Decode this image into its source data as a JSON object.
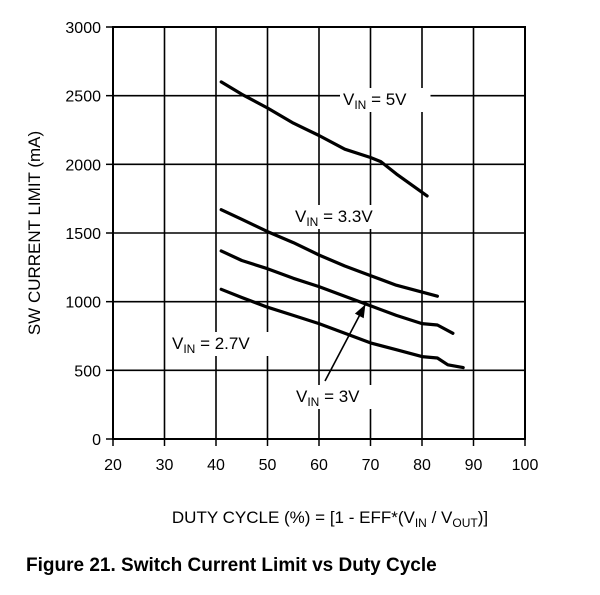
{
  "chart_data": {
    "type": "line",
    "title": "",
    "xlabel": {
      "prefix": "DUTY CYCLE (%) = [1 - EFF*(V",
      "sub_in": "IN",
      "middle": " / V",
      "sub_out": "OUT",
      "suffix": ")]"
    },
    "ylabel": "SW CURRENT LIMIT (mA)",
    "xlim": [
      20,
      100
    ],
    "ylim": [
      0,
      3000
    ],
    "xticks": [
      20,
      30,
      40,
      50,
      60,
      70,
      80,
      90,
      100
    ],
    "yticks": [
      0,
      500,
      1000,
      1500,
      2000,
      2500,
      3000
    ],
    "grid": true,
    "series": [
      {
        "name": "VIN = 5V",
        "x": [
          41,
          45,
          50,
          55,
          60,
          65,
          70,
          72,
          75,
          78,
          81
        ],
        "y": [
          2600,
          2510,
          2410,
          2300,
          2210,
          2110,
          2050,
          2020,
          1930,
          1850,
          1770
        ]
      },
      {
        "name": "VIN = 3.3V",
        "x": [
          41,
          45,
          50,
          55,
          60,
          65,
          70,
          75,
          80,
          83
        ],
        "y": [
          1670,
          1600,
          1510,
          1430,
          1340,
          1260,
          1190,
          1120,
          1070,
          1040
        ]
      },
      {
        "name": "VIN = 3V",
        "x": [
          41,
          45,
          50,
          55,
          60,
          65,
          70,
          75,
          80,
          83,
          86
        ],
        "y": [
          1370,
          1300,
          1240,
          1170,
          1110,
          1040,
          970,
          900,
          840,
          830,
          770
        ]
      },
      {
        "name": "VIN = 2.7V",
        "x": [
          41,
          45,
          50,
          55,
          60,
          65,
          70,
          75,
          80,
          83,
          85,
          88
        ],
        "y": [
          1090,
          1030,
          960,
          900,
          840,
          770,
          700,
          650,
          600,
          590,
          540,
          520
        ]
      }
    ],
    "annotations": [
      {
        "base": "V",
        "sub": "IN",
        "text": " = 5V"
      },
      {
        "base": "V",
        "sub": "IN",
        "text": " = 3.3V"
      },
      {
        "base": "V",
        "sub": "IN",
        "text": " = 2.7V"
      },
      {
        "base": "V",
        "sub": "IN",
        "text": " = 3V"
      }
    ],
    "arrow_target": {
      "x": 69,
      "y": 980
    }
  },
  "caption": "Figure 21.  Switch Current Limit vs Duty Cycle"
}
